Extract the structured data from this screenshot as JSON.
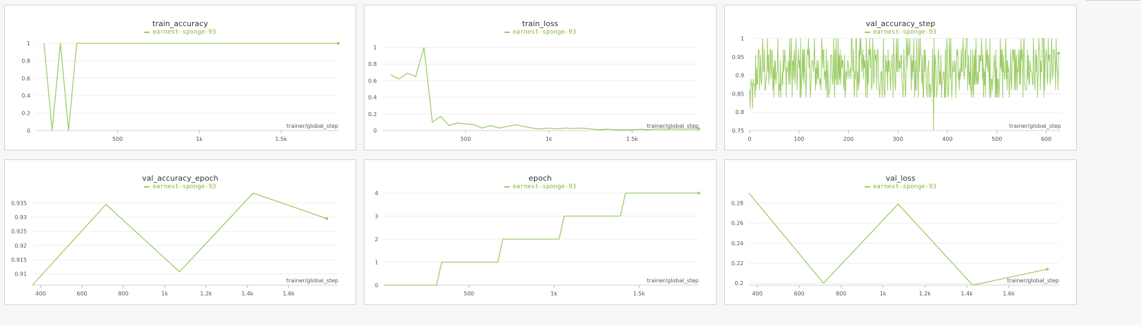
{
  "accent_color": "#9ccc65",
  "panels": [
    {
      "title": "train_accuracy",
      "legend": "earnest-sponge-93",
      "chart_data": {
        "type": "line",
        "title": "train_accuracy",
        "xlabel": "trainer/global_step",
        "xlim": [
          0,
          1850
        ],
        "ylim": [
          0,
          1
        ],
        "xticks": [
          500,
          1000,
          1500
        ],
        "xtick_labels": [
          "500",
          "1k",
          "1.5k"
        ],
        "yticks": [
          0,
          0.2,
          0.4,
          0.6,
          0.8,
          1
        ],
        "ytick_labels": [
          "0",
          "0.2",
          "0.4",
          "0.6",
          "0.8",
          "1"
        ],
        "series": [
          {
            "name": "earnest-sponge-93",
            "x": [
              50,
              100,
              150,
              200,
              250,
              1850
            ],
            "y": [
              1,
              0,
              1,
              0,
              1,
              1
            ]
          }
        ]
      }
    },
    {
      "title": "train_loss",
      "legend": "earnest-sponge-93",
      "chart_data": {
        "type": "line",
        "title": "train_loss",
        "xlabel": "trainer/global_step",
        "xlim": [
          0,
          1900
        ],
        "ylim": [
          0,
          1.05
        ],
        "xticks": [
          500,
          1000,
          1500
        ],
        "xtick_labels": [
          "500",
          "1k",
          "1.5k"
        ],
        "yticks": [
          0,
          0.2,
          0.4,
          0.6,
          0.8,
          1
        ],
        "ytick_labels": [
          "0",
          "0.2",
          "0.4",
          "0.6",
          "0.8",
          "1"
        ],
        "series": [
          {
            "name": "earnest-sponge-93",
            "x": [
              50,
              100,
              150,
              200,
              250,
              300,
              350,
              400,
              450,
              500,
              550,
              600,
              650,
              700,
              750,
              800,
              850,
              900,
              950,
              1000,
              1050,
              1100,
              1150,
              1200,
              1250,
              1300,
              1350,
              1400,
              1450,
              1500,
              1550,
              1600,
              1650,
              1700,
              1750,
              1800,
              1850,
              1900
            ],
            "y": [
              0.67,
              0.62,
              0.69,
              0.65,
              1.0,
              0.1,
              0.17,
              0.06,
              0.09,
              0.08,
              0.07,
              0.03,
              0.06,
              0.03,
              0.05,
              0.07,
              0.05,
              0.03,
              0.02,
              0.03,
              0.02,
              0.03,
              0.025,
              0.03,
              0.02,
              0.01,
              0.015,
              0.01,
              0.01,
              0.01,
              0.015,
              0.01,
              0.02,
              0.015,
              0.02,
              0.015,
              0.02,
              0.02
            ]
          }
        ]
      }
    },
    {
      "title": "val_accuracy_step",
      "legend": "earnest-sponge-93",
      "chart_data": {
        "type": "line",
        "title": "val_accuracy_step",
        "xlabel": "trainer/global_step",
        "xlim": [
          0,
          630
        ],
        "ylim": [
          0.75,
          1
        ],
        "xticks": [
          0,
          100,
          200,
          300,
          400,
          500,
          600
        ],
        "xtick_labels": [
          "0",
          "100",
          "200",
          "300",
          "400",
          "500",
          "600"
        ],
        "yticks": [
          0.75,
          0.8,
          0.85,
          0.9,
          0.95,
          1
        ],
        "ytick_labels": [
          "0.75",
          "0.8",
          "0.85",
          "0.9",
          "0.95",
          "1"
        ],
        "series": [
          {
            "name": "earnest-sponge-93",
            "x_count": 626,
            "y_min": 0.75,
            "y_max": 1.0,
            "y_levels": [
              0.78,
              0.81,
              0.84,
              0.86,
              0.875,
              0.89,
              0.91,
              0.92,
              0.94,
              0.955,
              0.97,
              1.0
            ],
            "notable": [
              {
                "x": 372,
                "y": 0.75
              },
              {
                "x": 625,
                "y": 0.96
              }
            ]
          }
        ]
      }
    },
    {
      "title": "val_accuracy_epoch",
      "legend": "earnest-sponge-93",
      "chart_data": {
        "type": "line",
        "title": "val_accuracy_epoch",
        "xlabel": "trainer/global_step",
        "xlim": [
          360,
          1840
        ],
        "ylim": [
          0.906,
          0.9385
        ],
        "xticks": [
          400,
          600,
          800,
          1000,
          1200,
          1400,
          1600
        ],
        "xtick_labels": [
          "400",
          "600",
          "800",
          "1k",
          "1.2k",
          "1.4k",
          "1.6k"
        ],
        "yticks": [
          0.91,
          0.915,
          0.92,
          0.925,
          0.93,
          0.935
        ],
        "ytick_labels": [
          "0.91",
          "0.915",
          "0.92",
          "0.925",
          "0.93",
          "0.935"
        ],
        "series": [
          {
            "name": "earnest-sponge-93",
            "x": [
              360,
              716,
              1072,
              1428,
              1784
            ],
            "y": [
              0.906,
              0.9345,
              0.9107,
              0.9385,
              0.9295
            ]
          }
        ]
      }
    },
    {
      "title": "epoch",
      "legend": "earnest-sponge-93",
      "chart_data": {
        "type": "line",
        "title": "epoch",
        "xlabel": "trainer/global_step",
        "xlim": [
          0,
          1850
        ],
        "ylim": [
          0,
          4
        ],
        "xticks": [
          500,
          1000,
          1500
        ],
        "xtick_labels": [
          "500",
          "1k",
          "1.5k"
        ],
        "yticks": [
          0,
          1,
          2,
          3,
          4
        ],
        "ytick_labels": [
          "0",
          "1",
          "2",
          "3",
          "4"
        ],
        "series": [
          {
            "name": "earnest-sponge-93",
            "x": [
              0,
              310,
              340,
              670,
              700,
              1030,
              1060,
              1390,
              1420,
              1850
            ],
            "y": [
              0,
              0,
              1,
              1,
              2,
              2,
              3,
              3,
              4,
              4
            ]
          }
        ]
      }
    },
    {
      "title": "val_loss",
      "legend": "earnest-sponge-93",
      "chart_data": {
        "type": "line",
        "title": "val_loss",
        "xlabel": "trainer/global_step",
        "xlim": [
          360,
          1840
        ],
        "ylim": [
          0.198,
          0.29
        ],
        "xticks": [
          400,
          600,
          800,
          1000,
          1200,
          1400,
          1600
        ],
        "xtick_labels": [
          "400",
          "600",
          "800",
          "1k",
          "1.2k",
          "1.4k",
          "1.6k"
        ],
        "yticks": [
          0.2,
          0.22,
          0.24,
          0.26,
          0.28
        ],
        "ytick_labels": [
          "0.2",
          "0.22",
          "0.24",
          "0.26",
          "0.28"
        ],
        "series": [
          {
            "name": "earnest-sponge-93",
            "x": [
              360,
              716,
              1072,
              1428,
              1784
            ],
            "y": [
              0.29,
              0.2,
              0.279,
              0.198,
              0.214
            ]
          }
        ]
      }
    }
  ]
}
